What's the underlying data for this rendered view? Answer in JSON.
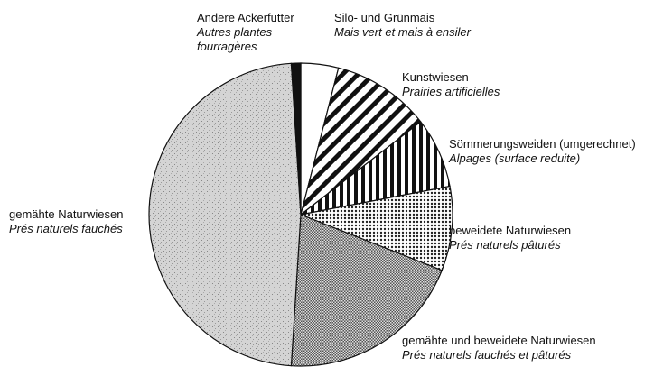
{
  "chart_data": {
    "type": "pie",
    "categories": [
      "Silo- und Grünmais",
      "Kunstwiesen",
      "Sömmerungsweiden (umgerechnet)",
      "beweidete Naturwiesen",
      "gemähte und beweidete Naturwiesen",
      "gemähte Naturwiesen",
      "Andere Ackerfutter"
    ],
    "categories_fr": [
      "Mais vert et mais à ensiler",
      "Prairies artificielles",
      "Alpages (surface reduite)",
      "Prés naturels pâturés",
      "Prés naturels fauchés et pâturés",
      "Prés naturels fauchés",
      "Autres plantes fourragères"
    ],
    "values": [
      4,
      10.5,
      7.5,
      9,
      20,
      48,
      1
    ],
    "fills": [
      "white",
      "diagonal",
      "vertical",
      "dots",
      "crosshatch",
      "gray",
      "black"
    ]
  }
}
